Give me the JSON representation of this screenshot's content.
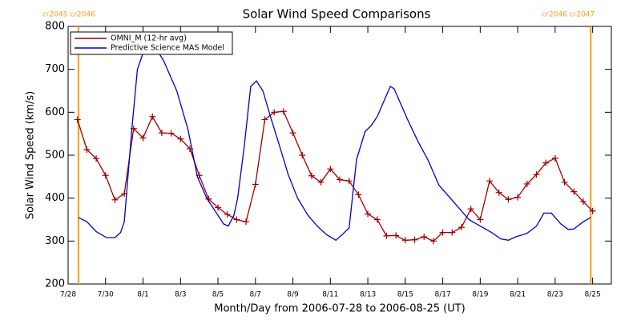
{
  "chart_data": {
    "type": "line",
    "title": "Solar Wind Speed Comparisons",
    "x_label": "Month/Day from 2006-07-28 to 2006-08-25 (UT)",
    "y_label": "Solar Wind Speed (km/s)",
    "xlim": [
      0,
      29
    ],
    "ylim": [
      200,
      800
    ],
    "yticks": [
      200,
      300,
      400,
      500,
      600,
      700,
      800
    ],
    "xticks": [
      {
        "value": 0,
        "label": "7/28"
      },
      {
        "value": 2,
        "label": "7/30"
      },
      {
        "value": 4,
        "label": "8/1"
      },
      {
        "value": 6,
        "label": "8/3"
      },
      {
        "value": 8,
        "label": "8/5"
      },
      {
        "value": 10,
        "label": "8/7"
      },
      {
        "value": 12,
        "label": "8/9"
      },
      {
        "value": 14,
        "label": "8/11"
      },
      {
        "value": 16,
        "label": "8/13"
      },
      {
        "value": 18,
        "label": "8/15"
      },
      {
        "value": 20,
        "label": "8/17"
      },
      {
        "value": 22,
        "label": "8/19"
      },
      {
        "value": 24,
        "label": "8/21"
      },
      {
        "value": 26,
        "label": "8/23"
      },
      {
        "value": 28,
        "label": "8/25"
      }
    ],
    "legend_position": "upper left",
    "series": [
      {
        "name": "OMNI_M (12-hr avg)",
        "color": "#a00000",
        "markers": true,
        "x": [
          0.5,
          1,
          1.5,
          2,
          2.5,
          3,
          3.5,
          4,
          4.5,
          5,
          5.5,
          6,
          6.5,
          7,
          7.5,
          8,
          8.5,
          9,
          9.5,
          10,
          10.5,
          11,
          11.5,
          12,
          12.5,
          13,
          13.5,
          14,
          14.5,
          15,
          15.5,
          16,
          16.5,
          17,
          17.5,
          18,
          18.5,
          19,
          19.5,
          20,
          20.5,
          21,
          21.5,
          22,
          22.5,
          23,
          23.5,
          24,
          24.5,
          25,
          25.5,
          26,
          26.5,
          27,
          27.5,
          28
        ],
        "values": [
          583,
          513,
          492,
          453,
          396,
          410,
          562,
          540,
          590,
          552,
          551,
          538,
          515,
          453,
          398,
          378,
          362,
          350,
          345,
          432,
          583,
          600,
          602,
          552,
          500,
          452,
          437,
          468,
          443,
          440,
          408,
          363,
          350,
          312,
          313,
          302,
          303,
          310,
          300,
          320,
          320,
          332,
          375,
          350,
          440,
          413,
          397,
          402,
          433,
          455,
          482,
          493,
          437,
          415,
          392,
          370
        ]
      },
      {
        "name": "Predictive Science MAS Model",
        "color": "#0000cc",
        "markers": false,
        "x": [
          0.55,
          1,
          1.5,
          2.05,
          2.5,
          2.8,
          3,
          3.4,
          3.7,
          4.06,
          4.7,
          5.1,
          5.8,
          6.4,
          6.9,
          7.4,
          8,
          8.3,
          8.55,
          8.85,
          9.05,
          9.4,
          9.75,
          10.05,
          10.4,
          10.8,
          11.3,
          11.75,
          12.25,
          12.8,
          13.3,
          13.8,
          14.3,
          15,
          15.4,
          15.85,
          16.2,
          16.5,
          17.2,
          17.4,
          18.1,
          18.7,
          19.2,
          19.8,
          20.7,
          21.4,
          22,
          22.6,
          23.1,
          23.5,
          23.9,
          24.5,
          25,
          25.4,
          25.8,
          26.3,
          26.7,
          27,
          27.5,
          27.9
        ],
        "values": [
          355,
          345,
          322,
          308,
          308,
          320,
          345,
          560,
          700,
          745,
          748,
          720,
          650,
          560,
          450,
          400,
          360,
          340,
          335,
          360,
          400,
          520,
          660,
          673,
          650,
          590,
          520,
          455,
          400,
          360,
          335,
          315,
          302,
          330,
          490,
          555,
          570,
          590,
          660,
          655,
          585,
          530,
          490,
          430,
          385,
          350,
          335,
          320,
          305,
          302,
          310,
          318,
          335,
          365,
          365,
          340,
          327,
          328,
          345,
          355
        ]
      }
    ],
    "vlines": [
      {
        "x": 0.55,
        "label": "cr2045 cr2046",
        "color": "#ff9a1a"
      },
      {
        "x": 27.9,
        "label": "cr2046 cr2047",
        "color": "#ff9a1a"
      }
    ]
  }
}
